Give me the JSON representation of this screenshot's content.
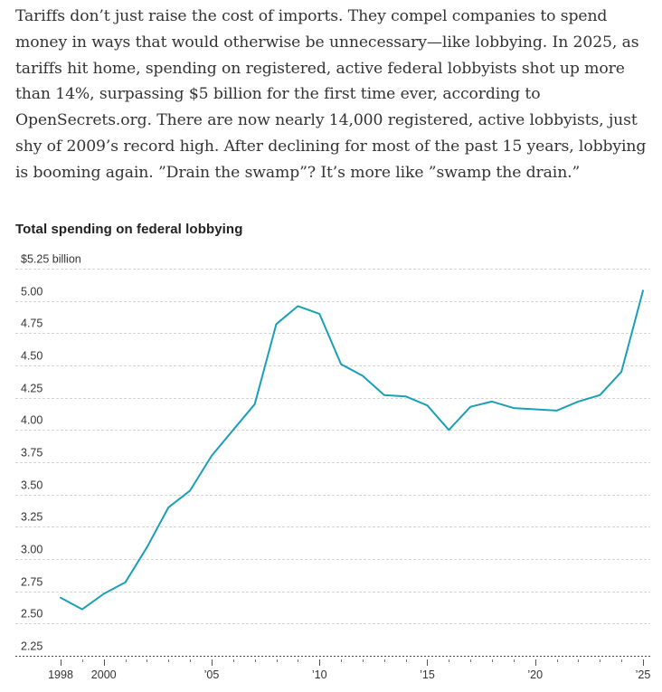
{
  "article": {
    "paragraph": "Tariffs don’t just raise the cost of imports. They compel companies to spend money in ways that would otherwise be unnecessary—like lobbying. In 2025, as tariffs hit home, spending on registered, active federal lobbyists shot up more than 14%, surpassing $5 billion for the first time ever, according to OpenSecrets.org. There are now nearly 14,000 registered, active lobbyists, just shy of 2009’s record high. After declining for most of the past 15 years, lobbying is booming again. ”Drain the swamp”? It’s more like ”swamp the drain.”"
  },
  "chart_data": {
    "type": "line",
    "title": "Total spending on federal lobbying",
    "ylim": [
      2.25,
      5.25
    ],
    "y_ticks": [
      5.25,
      5.0,
      4.75,
      4.5,
      4.25,
      4.0,
      3.75,
      3.5,
      3.25,
      3.0,
      2.75,
      2.5,
      2.25
    ],
    "y_tick_labels": [
      "$5.25 billion",
      "5.00",
      "4.75",
      "4.50",
      "4.25",
      "4.00",
      "3.75",
      "3.50",
      "3.25",
      "3.00",
      "2.75",
      "2.50",
      "2.25"
    ],
    "xlim": [
      1998,
      2025
    ],
    "x_ticks": [
      1998,
      2000,
      2005,
      2010,
      2015,
      2020,
      2025
    ],
    "x_tick_labels": [
      "1998",
      "2000",
      "’05",
      "’10",
      "’15",
      "’20",
      "’25"
    ],
    "grid": true,
    "line_color": "#1a9fb8",
    "series": [
      {
        "x": [
          1998,
          1999,
          2000,
          2001,
          2002,
          2003,
          2004,
          2005,
          2006,
          2007,
          2008,
          2009,
          2010,
          2011,
          2012,
          2013,
          2014,
          2015,
          2016,
          2017,
          2018,
          2019,
          2020,
          2021,
          2022,
          2023,
          2024,
          2025
        ],
        "values": [
          2.7,
          2.61,
          2.73,
          2.82,
          3.09,
          3.4,
          3.53,
          3.8,
          4.0,
          4.2,
          4.82,
          4.96,
          4.9,
          4.51,
          4.42,
          4.27,
          4.26,
          4.19,
          4.0,
          4.18,
          4.22,
          4.17,
          4.16,
          4.15,
          4.22,
          4.27,
          4.45,
          5.08
        ]
      }
    ]
  }
}
